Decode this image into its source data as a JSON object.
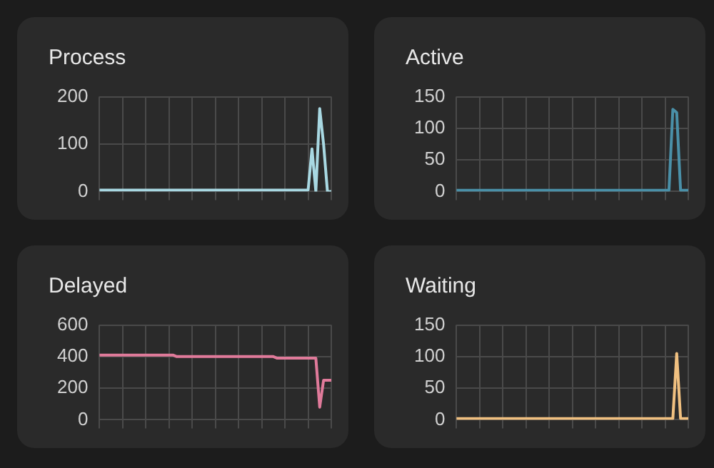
{
  "chart_data": [
    {
      "type": "line",
      "title": "Process",
      "categories": [
        null,
        null,
        null,
        null,
        null,
        null,
        null,
        null,
        null,
        null,
        null,
        null,
        null,
        null,
        null,
        null,
        null,
        null,
        null,
        null,
        null,
        null,
        null,
        null,
        null,
        null,
        null,
        null,
        null,
        null,
        null,
        null,
        null,
        null,
        null,
        null,
        null,
        null,
        null,
        null,
        null,
        null,
        null,
        null,
        null,
        null,
        null,
        null,
        null,
        null,
        null,
        null,
        null,
        null,
        null,
        null,
        null,
        null,
        null,
        null,
        null
      ],
      "color": "#a8d8e2",
      "values": [
        3,
        3,
        3,
        3,
        3,
        3,
        3,
        3,
        3,
        3,
        3,
        3,
        3,
        3,
        3,
        3,
        3,
        3,
        3,
        3,
        3,
        3,
        3,
        3,
        3,
        3,
        3,
        3,
        3,
        3,
        3,
        3,
        3,
        3,
        3,
        3,
        3,
        3,
        3,
        3,
        3,
        3,
        3,
        3,
        3,
        3,
        3,
        3,
        3,
        3,
        3,
        3,
        3,
        3,
        3,
        90,
        0,
        175,
        100,
        0,
        0
      ],
      "ylim": [
        0,
        200
      ],
      "yticks": [
        0,
        100,
        200
      ],
      "grid": true,
      "marker": "none",
      "tick_labels": "y"
    },
    {
      "type": "line",
      "title": "Active",
      "categories": [
        null,
        null,
        null,
        null,
        null,
        null,
        null,
        null,
        null,
        null,
        null,
        null,
        null,
        null,
        null,
        null,
        null,
        null,
        null,
        null,
        null,
        null,
        null,
        null,
        null,
        null,
        null,
        null,
        null,
        null,
        null,
        null,
        null,
        null,
        null,
        null,
        null,
        null,
        null,
        null,
        null,
        null,
        null,
        null,
        null,
        null,
        null,
        null,
        null,
        null,
        null,
        null,
        null,
        null,
        null,
        null,
        null,
        null,
        null,
        null,
        null
      ],
      "color": "#4a90a8",
      "values": [
        2,
        2,
        2,
        2,
        2,
        2,
        2,
        2,
        2,
        2,
        2,
        2,
        2,
        2,
        2,
        2,
        2,
        2,
        2,
        2,
        2,
        2,
        2,
        2,
        2,
        2,
        2,
        2,
        2,
        2,
        2,
        2,
        2,
        2,
        2,
        2,
        2,
        2,
        2,
        2,
        2,
        2,
        2,
        2,
        2,
        2,
        2,
        2,
        2,
        2,
        2,
        2,
        2,
        2,
        2,
        2,
        130,
        125,
        2,
        2,
        2
      ],
      "ylim": [
        0,
        150
      ],
      "yticks": [
        0,
        50,
        100,
        150
      ],
      "grid": true,
      "marker": "none",
      "tick_labels": "y"
    },
    {
      "type": "line",
      "title": "Delayed",
      "categories": [
        null,
        null,
        null,
        null,
        null,
        null,
        null,
        null,
        null,
        null,
        null,
        null,
        null,
        null,
        null,
        null,
        null,
        null,
        null,
        null,
        null,
        null,
        null,
        null,
        null,
        null,
        null,
        null,
        null,
        null,
        null,
        null,
        null,
        null,
        null,
        null,
        null,
        null,
        null,
        null,
        null,
        null,
        null,
        null,
        null,
        null,
        null,
        null,
        null,
        null,
        null,
        null,
        null,
        null,
        null,
        null,
        null,
        null,
        null,
        null,
        null
      ],
      "color": "#e07a9a",
      "values": [
        410,
        410,
        410,
        410,
        410,
        410,
        410,
        410,
        410,
        410,
        410,
        410,
        410,
        410,
        410,
        410,
        410,
        410,
        410,
        410,
        400,
        400,
        400,
        400,
        400,
        400,
        400,
        400,
        400,
        400,
        400,
        400,
        400,
        400,
        400,
        400,
        400,
        400,
        400,
        400,
        400,
        400,
        400,
        400,
        400,
        400,
        390,
        390,
        390,
        390,
        390,
        390,
        390,
        390,
        390,
        390,
        390,
        80,
        250,
        250,
        250
      ],
      "ylim": [
        0,
        600
      ],
      "yticks": [
        0,
        200,
        400,
        600
      ],
      "grid": true,
      "marker": "none",
      "tick_labels": "y"
    },
    {
      "type": "line",
      "title": "Waiting",
      "categories": [
        null,
        null,
        null,
        null,
        null,
        null,
        null,
        null,
        null,
        null,
        null,
        null,
        null,
        null,
        null,
        null,
        null,
        null,
        null,
        null,
        null,
        null,
        null,
        null,
        null,
        null,
        null,
        null,
        null,
        null,
        null,
        null,
        null,
        null,
        null,
        null,
        null,
        null,
        null,
        null,
        null,
        null,
        null,
        null,
        null,
        null,
        null,
        null,
        null,
        null,
        null,
        null,
        null,
        null,
        null,
        null,
        null,
        null,
        null,
        null,
        null
      ],
      "color": "#f0c080",
      "values": [
        2,
        2,
        2,
        2,
        2,
        2,
        2,
        2,
        2,
        2,
        2,
        2,
        2,
        2,
        2,
        2,
        2,
        2,
        2,
        2,
        2,
        2,
        2,
        2,
        2,
        2,
        2,
        2,
        2,
        2,
        2,
        2,
        2,
        2,
        2,
        2,
        2,
        2,
        2,
        2,
        2,
        2,
        2,
        2,
        2,
        2,
        2,
        2,
        2,
        2,
        2,
        2,
        2,
        2,
        2,
        2,
        2,
        105,
        2,
        2,
        2
      ],
      "ylim": [
        0,
        150
      ],
      "yticks": [
        0,
        50,
        100,
        150
      ],
      "grid": true,
      "marker": "none",
      "tick_labels": "y"
    }
  ]
}
